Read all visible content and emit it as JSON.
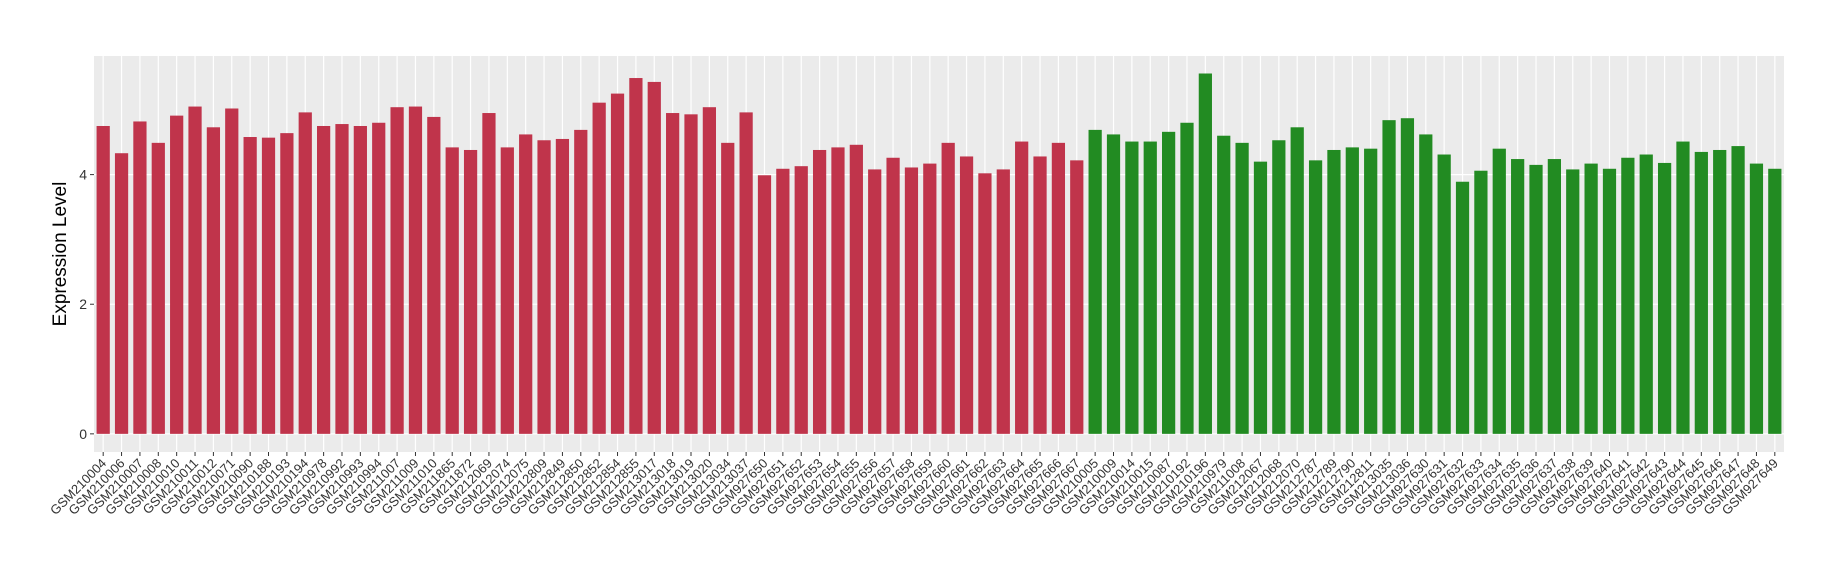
{
  "chart_data": {
    "type": "bar",
    "y_label": "Expression Level",
    "categories": [
      "GSM210004",
      "GSM210006",
      "GSM210007",
      "GSM210008",
      "GSM210010",
      "GSM210011",
      "GSM210012",
      "GSM210071",
      "GSM210090",
      "GSM210188",
      "GSM210193",
      "GSM210194",
      "GSM210978",
      "GSM210992",
      "GSM210993",
      "GSM210994",
      "GSM211007",
      "GSM211009",
      "GSM211010",
      "GSM211865",
      "GSM211872",
      "GSM212069",
      "GSM212074",
      "GSM212075",
      "GSM212809",
      "GSM212849",
      "GSM212850",
      "GSM212852",
      "GSM212854",
      "GSM212855",
      "GSM213017",
      "GSM213018",
      "GSM213019",
      "GSM213020",
      "GSM213034",
      "GSM213037",
      "GSM927650",
      "GSM927651",
      "GSM927652",
      "GSM927653",
      "GSM927654",
      "GSM927655",
      "GSM927656",
      "GSM927657",
      "GSM927658",
      "GSM927659",
      "GSM927660",
      "GSM927661",
      "GSM927662",
      "GSM927663",
      "GSM927664",
      "GSM927665",
      "GSM927666",
      "GSM927667",
      "GSM210005",
      "GSM210009",
      "GSM210014",
      "GSM210015",
      "GSM210087",
      "GSM210192",
      "GSM210196",
      "GSM210979",
      "GSM211008",
      "GSM212067",
      "GSM212068",
      "GSM212070",
      "GSM212787",
      "GSM212789",
      "GSM212790",
      "GSM212811",
      "GSM213035",
      "GSM213036",
      "GSM927630",
      "GSM927631",
      "GSM927632",
      "GSM927633",
      "GSM927634",
      "GSM927635",
      "GSM927636",
      "GSM927637",
      "GSM927638",
      "GSM927639",
      "GSM927640",
      "GSM927641",
      "GSM927642",
      "GSM927643",
      "GSM927644",
      "GSM927645",
      "GSM927646",
      "GSM927647",
      "GSM927648",
      "GSM927649"
    ],
    "series": [
      {
        "color": "#c0344b",
        "values": [
          4.75,
          4.33,
          4.82,
          4.49,
          4.91,
          5.05,
          4.73,
          5.02,
          4.58,
          4.57,
          4.64,
          4.96,
          4.75,
          4.78,
          4.75,
          4.8,
          5.04,
          5.05,
          4.89,
          4.42,
          4.38,
          4.95,
          4.42,
          4.62,
          4.53,
          4.55,
          4.69,
          5.11,
          5.25,
          5.49,
          5.43,
          4.95,
          4.93,
          5.04,
          4.49,
          4.96,
          3.99,
          4.09,
          4.13,
          4.38,
          4.42,
          4.46,
          4.08,
          4.26,
          4.11,
          4.17,
          4.49,
          4.28,
          4.02,
          4.08,
          4.51,
          4.28,
          4.49,
          4.22,
          null,
          null,
          null,
          null,
          null,
          null,
          null,
          null,
          null,
          null,
          null,
          null,
          null,
          null,
          null,
          null,
          null,
          null,
          null,
          null,
          null,
          null,
          null,
          null,
          null,
          null,
          null,
          null,
          null,
          null,
          null,
          null,
          null,
          null,
          null,
          null,
          null,
          null
        ]
      },
      {
        "color": "#228b22",
        "values": [
          null,
          null,
          null,
          null,
          null,
          null,
          null,
          null,
          null,
          null,
          null,
          null,
          null,
          null,
          null,
          null,
          null,
          null,
          null,
          null,
          null,
          null,
          null,
          null,
          null,
          null,
          null,
          null,
          null,
          null,
          null,
          null,
          null,
          null,
          null,
          null,
          null,
          null,
          null,
          null,
          null,
          null,
          null,
          null,
          null,
          null,
          null,
          null,
          null,
          null,
          null,
          null,
          null,
          null,
          4.69,
          4.62,
          4.51,
          4.51,
          4.66,
          4.8,
          5.56,
          4.6,
          4.49,
          4.2,
          4.53,
          4.73,
          4.22,
          4.38,
          4.42,
          4.4,
          4.84,
          4.87,
          4.62,
          4.31,
          3.89,
          4.06,
          4.4,
          4.24,
          4.15,
          4.24,
          4.08,
          4.17,
          4.09,
          4.26,
          4.31,
          4.18,
          4.51,
          4.35,
          4.38,
          4.44,
          4.17,
          4.09
        ]
      }
    ],
    "ylim": [
      -0.28,
      5.83
    ],
    "yticks": [
      0,
      2,
      4
    ],
    "grid": true
  }
}
